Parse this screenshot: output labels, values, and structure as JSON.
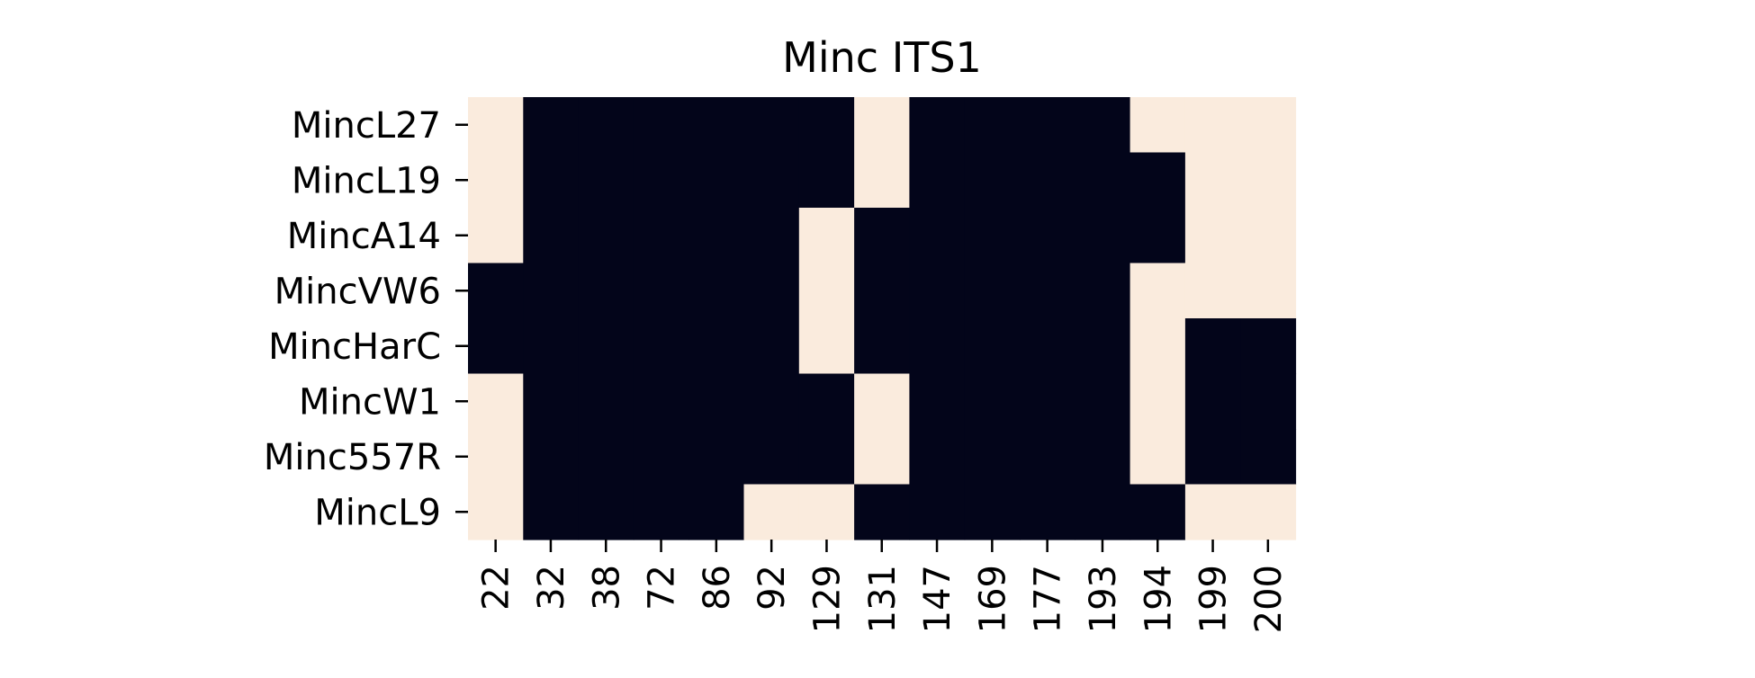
{
  "chart_data": {
    "type": "heatmap",
    "title": "Minc ITS1",
    "xlabel": "",
    "ylabel": "",
    "x_categories": [
      "22",
      "32",
      "38",
      "72",
      "86",
      "92",
      "129",
      "131",
      "147",
      "169",
      "177",
      "193",
      "194",
      "199",
      "200"
    ],
    "y_categories": [
      "MincL27",
      "MincL19",
      "MincA14",
      "MincVW6",
      "MincHarC",
      "MincW1",
      "Minc557R",
      "MincL9"
    ],
    "values": [
      [
        1,
        0,
        0,
        0,
        0,
        0,
        0,
        1,
        0,
        0,
        0,
        0,
        1,
        1,
        1
      ],
      [
        1,
        0,
        0,
        0,
        0,
        0,
        0,
        1,
        0,
        0,
        0,
        0,
        0,
        1,
        1
      ],
      [
        1,
        0,
        0,
        0,
        0,
        0,
        1,
        0,
        0,
        0,
        0,
        0,
        0,
        1,
        1
      ],
      [
        0,
        0,
        0,
        0,
        0,
        0,
        1,
        0,
        0,
        0,
        0,
        0,
        1,
        1,
        1
      ],
      [
        0,
        0,
        0,
        0,
        0,
        0,
        1,
        0,
        0,
        0,
        0,
        0,
        1,
        0,
        0
      ],
      [
        1,
        0,
        0,
        0,
        0,
        0,
        0,
        1,
        0,
        0,
        0,
        0,
        1,
        0,
        0
      ],
      [
        1,
        0,
        0,
        0,
        0,
        0,
        0,
        1,
        0,
        0,
        0,
        0,
        1,
        0,
        0
      ],
      [
        1,
        0,
        0,
        0,
        0,
        1,
        1,
        0,
        0,
        0,
        0,
        0,
        0,
        1,
        1
      ]
    ],
    "colors": {
      "0": "#03051a",
      "1": "#faebdd"
    },
    "colorbar": false,
    "grid": false,
    "legend": "none"
  }
}
